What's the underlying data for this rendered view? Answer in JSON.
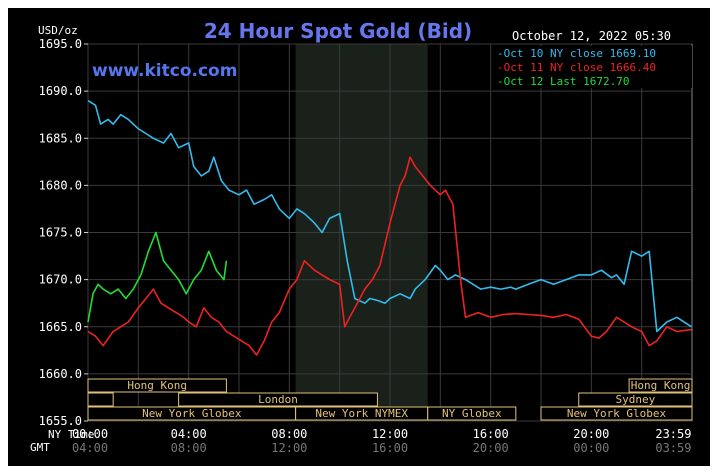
{
  "chart_data": {
    "type": "line",
    "title": "24 Hour Spot Gold (Bid)",
    "unit_label": "USD/oz",
    "watermark": "www.kitco.com",
    "datetime": "October 12, 2022 05:30",
    "ylim": [
      1655,
      1695
    ],
    "xlim": [
      0,
      24
    ],
    "y_ticks": [
      {
        "value": 1695,
        "label": "1695.0"
      },
      {
        "value": 1690,
        "label": "1690.0"
      },
      {
        "value": 1685,
        "label": "1685.0"
      },
      {
        "value": 1680,
        "label": "1680.0"
      },
      {
        "value": 1675,
        "label": "1675.0"
      },
      {
        "value": 1670,
        "label": "1670.0"
      },
      {
        "value": 1665,
        "label": "1665.0"
      },
      {
        "value": 1660,
        "label": "1660.0"
      },
      {
        "value": 1655,
        "label": "1655.0"
      }
    ],
    "x_ticks_label_ny": "NY Time",
    "x_ticks_label_gmt": "GMT",
    "x_ticks": [
      {
        "value": 0,
        "ny": "00:00",
        "gmt": "04:00"
      },
      {
        "value": 4,
        "ny": "04:00",
        "gmt": "08:00"
      },
      {
        "value": 8,
        "ny": "08:00",
        "gmt": "12:00"
      },
      {
        "value": 12,
        "ny": "12:00",
        "gmt": "16:00"
      },
      {
        "value": 16,
        "ny": "16:00",
        "gmt": "20:00"
      },
      {
        "value": 20,
        "ny": "20:00",
        "gmt": "00:00"
      },
      {
        "value": 23.98,
        "ny": "23:59",
        "gmt": "03:59"
      }
    ],
    "grid": true,
    "legend_position": "top-right",
    "shaded_region": [
      8.25,
      13.5
    ],
    "series": [
      {
        "name": "Oct 10 NY close 1669.10",
        "color": "#33bbee",
        "x": [
          0,
          0.3,
          0.5,
          0.8,
          1,
          1.3,
          1.6,
          2,
          2.3,
          2.6,
          3,
          3.3,
          3.6,
          4,
          4.2,
          4.5,
          4.8,
          5,
          5.3,
          5.6,
          6,
          6.3,
          6.6,
          7,
          7.3,
          7.6,
          8,
          8.3,
          8.6,
          9,
          9.3,
          9.6,
          10,
          10.3,
          10.6,
          11,
          11.2,
          11.5,
          11.8,
          12,
          12.4,
          12.8,
          13,
          13.4,
          13.8,
          14,
          14.3,
          14.6,
          15,
          15.3,
          15.6,
          16,
          16.4,
          16.8,
          17,
          17.5,
          18,
          18.5,
          19,
          19.5,
          20,
          20.4,
          20.8,
          21,
          21.3,
          21.6,
          22,
          22.3,
          22.6,
          23,
          23.4,
          23.98
        ],
        "y": [
          1689,
          1688.5,
          1686.5,
          1687,
          1686.5,
          1687.5,
          1687,
          1686,
          1685.5,
          1685,
          1684.5,
          1685.5,
          1684,
          1684.5,
          1682,
          1681,
          1681.5,
          1683,
          1680.5,
          1679.5,
          1679,
          1679.5,
          1678,
          1678.5,
          1679,
          1677.5,
          1676.5,
          1677.5,
          1677,
          1676,
          1675,
          1676.5,
          1677,
          1672,
          1668,
          1667.5,
          1668,
          1667.8,
          1667.5,
          1668,
          1668.5,
          1668,
          1669,
          1670,
          1671.5,
          1671,
          1670,
          1670.5,
          1670,
          1669.5,
          1669,
          1669.2,
          1669,
          1669.2,
          1669,
          1669.5,
          1670,
          1669.5,
          1670,
          1670.5,
          1670.5,
          1671,
          1670.2,
          1670.5,
          1669.5,
          1673,
          1672.5,
          1673,
          1664.5,
          1665.5,
          1666,
          1665
        ]
      },
      {
        "name": "Oct 11 NY close 1666.40",
        "color": "#ee2222",
        "x": [
          0,
          0.3,
          0.6,
          1,
          1.3,
          1.6,
          2,
          2.3,
          2.6,
          2.9,
          3.2,
          3.5,
          3.8,
          4,
          4.3,
          4.6,
          4.9,
          5.2,
          5.5,
          5.8,
          6.1,
          6.4,
          6.7,
          7,
          7.3,
          7.6,
          8,
          8.3,
          8.6,
          9,
          9.3,
          9.6,
          10,
          10.2,
          10.4,
          10.6,
          10.8,
          11,
          11.3,
          11.6,
          12,
          12.2,
          12.4,
          12.6,
          12.8,
          13,
          13.3,
          13.6,
          14,
          14.2,
          14.5,
          14.8,
          15,
          15.5,
          16,
          16.5,
          17,
          17.5,
          18,
          18.5,
          19,
          19.5,
          20,
          20.3,
          20.6,
          21,
          21.3,
          21.6,
          22,
          22.3,
          22.6,
          23,
          23.4,
          23.98
        ],
        "y": [
          1664.5,
          1664,
          1663,
          1664.5,
          1665,
          1665.5,
          1667,
          1668,
          1669,
          1667.5,
          1667,
          1666.5,
          1666,
          1665.5,
          1665,
          1667,
          1666,
          1665.5,
          1664.5,
          1664,
          1663.5,
          1663,
          1662,
          1663.5,
          1665.5,
          1666.5,
          1669,
          1670,
          1672,
          1671,
          1670.5,
          1670,
          1669.5,
          1665,
          1666,
          1667,
          1668,
          1669,
          1670,
          1671.5,
          1676,
          1678,
          1680,
          1681,
          1683,
          1682,
          1681,
          1680,
          1679,
          1679.5,
          1678,
          1670,
          1666,
          1666.5,
          1666,
          1666.3,
          1666.4,
          1666.3,
          1666.2,
          1666,
          1666.3,
          1665.8,
          1664,
          1663.8,
          1664.5,
          1666,
          1665.5,
          1665,
          1664.5,
          1663,
          1663.5,
          1665,
          1664.5,
          1664.7
        ]
      },
      {
        "name": "Oct 12 Last 1672.70",
        "color": "#22dd33",
        "x": [
          0,
          0.2,
          0.4,
          0.6,
          0.9,
          1.2,
          1.5,
          1.8,
          2.1,
          2.4,
          2.7,
          3,
          3.3,
          3.6,
          3.9,
          4.2,
          4.5,
          4.8,
          5.1,
          5.4,
          5.5
        ],
        "y": [
          1665.5,
          1668.5,
          1669.5,
          1669,
          1668.5,
          1669,
          1668,
          1669,
          1670.5,
          1673,
          1675,
          1672,
          1671,
          1670,
          1668.5,
          1670,
          1671,
          1673,
          1671,
          1670,
          1672
        ]
      }
    ],
    "markets": [
      {
        "label": "Hong Kong",
        "start": 0,
        "end": 5.5,
        "row": 0
      },
      {
        "label": "",
        "start": 0,
        "end": 1,
        "row": 1
      },
      {
        "label": "London",
        "start": 3.6,
        "end": 11.5,
        "row": 1
      },
      {
        "label": "New York Globex",
        "start": 0,
        "end": 8.25,
        "row": 2
      },
      {
        "label": "New York NYMEX",
        "start": 8.25,
        "end": 13.5,
        "row": 2
      },
      {
        "label": "NY Globex",
        "start": 13.5,
        "end": 17,
        "row": 2
      },
      {
        "label": "Hong Kong",
        "start": 21.5,
        "end": 24,
        "row": 0
      },
      {
        "label": "Sydney",
        "start": 19.5,
        "end": 24,
        "row": 1
      },
      {
        "label": "New York Globex",
        "start": 18,
        "end": 24,
        "row": 2
      }
    ]
  }
}
